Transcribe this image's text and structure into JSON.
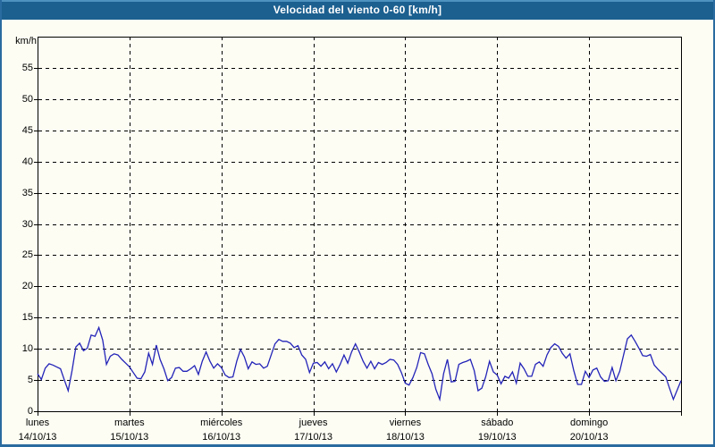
{
  "window": {
    "title": "Velocidad del viento 0-60 [km/h]"
  },
  "colors": {
    "titlebar_bg": "#1c6090",
    "titlebar_highlight": "#4e93c0",
    "frame_border": "#2a6ba0",
    "background": "#fdfdf4",
    "line": "#2323b8",
    "grid": "#000000",
    "text": "#000000"
  },
  "chart_data": {
    "type": "line",
    "title": "Velocidad del viento 0-60 [km/h]",
    "ylabel": "km/h",
    "xlabel": "",
    "ylim": [
      0,
      60
    ],
    "yticks": [
      0,
      5,
      10,
      15,
      20,
      25,
      30,
      35,
      40,
      45,
      50,
      55
    ],
    "grid": "dashed",
    "legend_position": "none",
    "samples_per_day": 24,
    "x_days": [
      {
        "name": "lunes",
        "date": "14/10/13"
      },
      {
        "name": "martes",
        "date": "15/10/13"
      },
      {
        "name": "miércoles",
        "date": "16/10/13"
      },
      {
        "name": "jueves",
        "date": "17/10/13"
      },
      {
        "name": "viernes",
        "date": "18/10/13"
      },
      {
        "name": "sábado",
        "date": "19/10/13"
      },
      {
        "name": "domingo",
        "date": "20/10/13"
      }
    ],
    "series": [
      {
        "name": "Velocidad del viento",
        "unit": "km/h",
        "values": [
          6.0,
          5.1,
          6.9,
          7.6,
          7.4,
          7.1,
          6.8,
          5.0,
          3.3,
          6.5,
          10.3,
          10.9,
          9.7,
          10.1,
          12.2,
          12.0,
          13.4,
          11.4,
          7.5,
          8.8,
          9.2,
          9.0,
          8.3,
          7.7,
          7.1,
          6.2,
          5.3,
          5.2,
          6.3,
          9.3,
          7.5,
          10.6,
          8.3,
          6.8,
          4.9,
          5.4,
          6.9,
          7.0,
          6.4,
          6.4,
          6.8,
          7.3,
          5.9,
          8.0,
          9.5,
          8.0,
          6.9,
          7.6,
          7.0,
          5.8,
          5.4,
          5.5,
          8.0,
          9.9,
          8.7,
          6.8,
          7.9,
          7.5,
          7.6,
          6.9,
          7.2,
          9.0,
          10.8,
          11.5,
          11.2,
          11.2,
          10.9,
          10.2,
          10.5,
          9.0,
          8.3,
          6.2,
          7.7,
          7.8,
          7.2,
          7.9,
          6.8,
          7.6,
          6.3,
          7.5,
          9.0,
          7.7,
          9.5,
          10.8,
          9.5,
          8.0,
          6.9,
          8.0,
          6.8,
          7.8,
          7.5,
          7.8,
          8.3,
          8.2,
          7.5,
          6.2,
          4.5,
          4.2,
          5.4,
          7.0,
          9.4,
          9.2,
          7.5,
          6.0,
          3.5,
          1.9,
          6.0,
          8.3,
          4.7,
          4.8,
          7.5,
          7.8,
          8.0,
          8.3,
          6.5,
          3.3,
          3.7,
          5.5,
          8.0,
          6.3,
          5.8,
          4.4,
          5.6,
          5.3,
          6.3,
          4.5,
          7.7,
          6.8,
          5.6,
          5.6,
          7.5,
          7.9,
          7.2,
          9.0,
          10.2,
          10.8,
          10.4,
          9.3,
          8.5,
          9.2,
          6.5,
          4.3,
          4.3,
          6.4,
          5.4,
          6.6,
          6.9,
          5.5,
          4.8,
          4.9,
          7.0,
          4.9,
          6.4,
          9.0,
          11.6,
          12.2,
          11.2,
          10.1,
          8.9,
          8.8,
          9.1,
          7.4,
          6.7,
          6.1,
          5.5,
          3.7,
          1.9,
          3.4,
          4.9
        ]
      }
    ]
  }
}
